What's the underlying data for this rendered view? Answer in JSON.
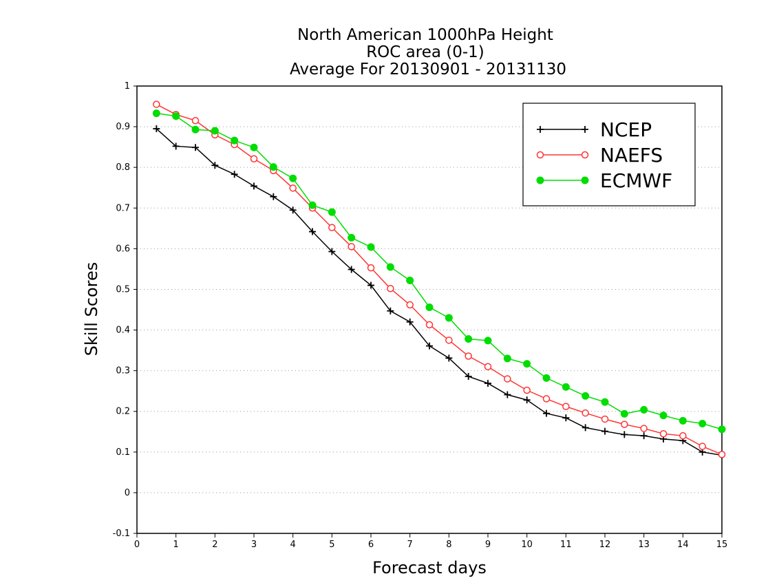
{
  "chart_data": {
    "type": "line",
    "title_lines": [
      "North American 1000hPa Height",
      "ROC area (0-1)",
      "Average For 20130901 - 20131130"
    ],
    "xlabel": "Forecast days",
    "ylabel": "Skill Scores",
    "xlim": [
      0,
      15
    ],
    "ylim": [
      -0.1,
      1
    ],
    "xticks": [
      0,
      1,
      2,
      3,
      4,
      5,
      6,
      7,
      8,
      9,
      10,
      11,
      12,
      13,
      14,
      15
    ],
    "xtick_labels": [
      "0",
      "1",
      "2",
      "3",
      "4",
      "5",
      "6",
      "7",
      "8",
      "9",
      "10",
      "11",
      "12",
      "13",
      "14",
      "15"
    ],
    "yticks": [
      -0.1,
      0,
      0.1,
      0.2,
      0.3,
      0.4,
      0.5,
      0.6,
      0.7,
      0.8,
      0.9,
      1
    ],
    "ytick_labels": [
      "-0.1",
      "0",
      "0.1",
      "0.2",
      "0.3",
      "0.4",
      "0.5",
      "0.6",
      "0.7",
      "0.8",
      "0.9",
      "1"
    ],
    "grid": "horizontal dotted",
    "legend_position": "top-right",
    "x": [
      0.5,
      1,
      1.5,
      2,
      2.5,
      3,
      3.5,
      4,
      4.5,
      5,
      5.5,
      6,
      6.5,
      7,
      7.5,
      8,
      8.5,
      9,
      9.5,
      10,
      10.5,
      11,
      11.5,
      12,
      12.5,
      13,
      13.5,
      14,
      14.5,
      15
    ],
    "series": [
      {
        "name": "NCEP",
        "color": "#000000",
        "marker": "plus",
        "values": [
          0.895,
          0.852,
          0.849,
          0.805,
          0.783,
          0.754,
          0.728,
          0.695,
          0.642,
          0.593,
          0.549,
          0.51,
          0.447,
          0.42,
          0.361,
          0.331,
          0.286,
          0.269,
          0.241,
          0.228,
          0.195,
          0.184,
          0.16,
          0.151,
          0.143,
          0.14,
          0.132,
          0.128,
          0.1,
          0.092
        ]
      },
      {
        "name": "NAEFS",
        "color": "#ff3333",
        "marker": "open-circle",
        "values": [
          0.955,
          0.93,
          0.915,
          0.88,
          0.856,
          0.821,
          0.792,
          0.749,
          0.7,
          0.652,
          0.605,
          0.553,
          0.502,
          0.462,
          0.413,
          0.375,
          0.336,
          0.31,
          0.28,
          0.252,
          0.231,
          0.212,
          0.196,
          0.181,
          0.168,
          0.158,
          0.145,
          0.14,
          0.114,
          0.094
        ]
      },
      {
        "name": "ECMWF",
        "color": "#00dd00",
        "marker": "filled-circle",
        "values": [
          0.933,
          0.926,
          0.893,
          0.89,
          0.866,
          0.849,
          0.801,
          0.773,
          0.707,
          0.69,
          0.627,
          0.604,
          0.555,
          0.522,
          0.456,
          0.43,
          0.378,
          0.374,
          0.33,
          0.317,
          0.282,
          0.26,
          0.238,
          0.223,
          0.194,
          0.204,
          0.19,
          0.177,
          0.17,
          0.156
        ]
      }
    ]
  }
}
